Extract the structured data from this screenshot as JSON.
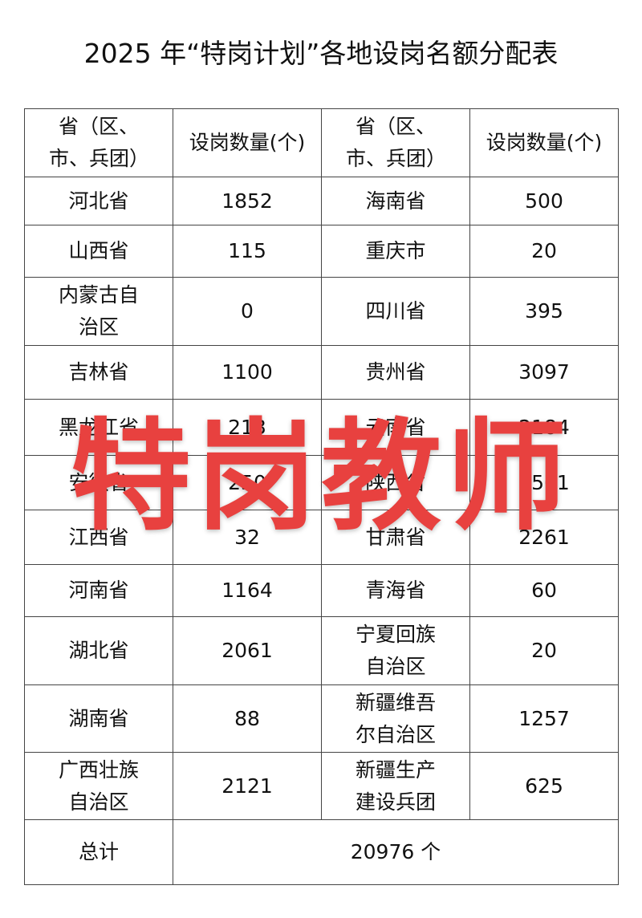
{
  "title": "2025 年“特岗计划”各地设岗名额分配表",
  "header": {
    "region": "省（区、市、兵团）",
    "count": "设岗数量(个)"
  },
  "rows": [
    [
      {
        "region": "河北省",
        "count": "1852"
      },
      {
        "region": "海南省",
        "count": "500"
      }
    ],
    [
      {
        "region": "山西省",
        "count": "115"
      },
      {
        "region": "重庆市",
        "count": "20"
      }
    ],
    [
      {
        "region": "内蒙古自治区",
        "count": "0"
      },
      {
        "region": "四川省",
        "count": "395"
      }
    ],
    [
      {
        "region": "吉林省",
        "count": "1100"
      },
      {
        "region": "贵州省",
        "count": "3097"
      }
    ],
    [
      {
        "region": "黑龙江省",
        "count": "213"
      },
      {
        "region": "云南省",
        "count": "2184"
      }
    ],
    [
      {
        "region": "安徽省",
        "count": "250"
      },
      {
        "region": "陕西省",
        "count": "1561"
      }
    ],
    [
      {
        "region": "江西省",
        "count": "32"
      },
      {
        "region": "甘肃省",
        "count": "2261"
      }
    ],
    [
      {
        "region": "河南省",
        "count": "1164"
      },
      {
        "region": "青海省",
        "count": "60"
      }
    ],
    [
      {
        "region": "湖北省",
        "count": "2061"
      },
      {
        "region": "宁夏回族自治区",
        "count": "20"
      }
    ],
    [
      {
        "region": "湖南省",
        "count": "88"
      },
      {
        "region": "新疆维吾尔自治区",
        "count": "1257"
      }
    ],
    [
      {
        "region": "广西壮族自治区",
        "count": "2121"
      },
      {
        "region": "新疆生产建设兵团",
        "count": "625"
      }
    ]
  ],
  "total": {
    "label": "总计",
    "value": "20976 个"
  },
  "watermark": "特岗教师",
  "watermark_color": "#e8413f"
}
